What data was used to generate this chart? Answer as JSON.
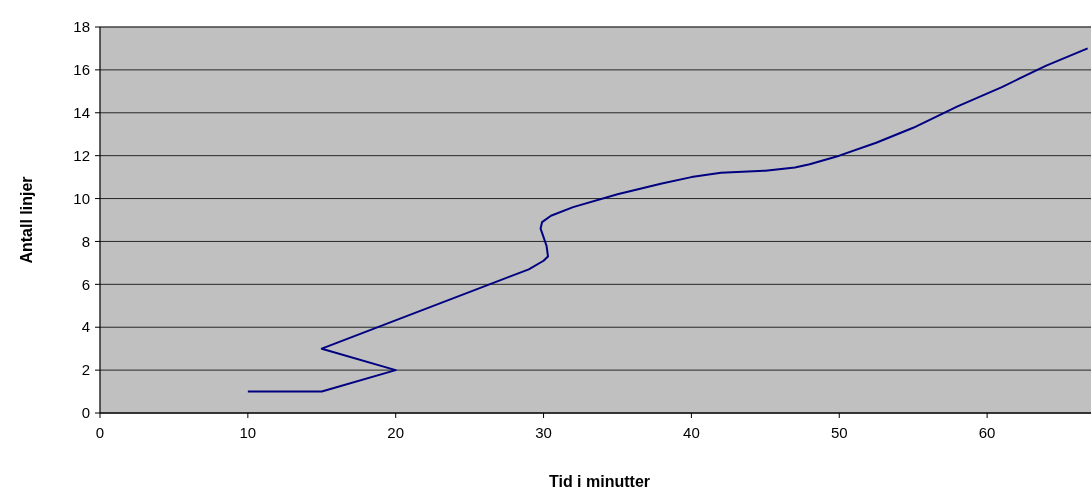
{
  "chart_data": {
    "type": "line",
    "xlabel": "Tid i minutter",
    "ylabel": "Antall linjer",
    "xlim": [
      0,
      67.5
    ],
    "xticks": [
      0,
      10,
      20,
      30,
      40,
      50,
      60
    ],
    "ylim": [
      0,
      18
    ],
    "yticks": [
      0,
      2,
      4,
      6,
      8,
      10,
      12,
      14,
      16,
      18
    ],
    "grid": "y",
    "marker": "none",
    "line_style": "solid",
    "series": [
      {
        "color": "#000080",
        "x": [
          10,
          15,
          20,
          15,
          29,
          30,
          30.3,
          30.2,
          29.8,
          29.9,
          30.5,
          32,
          35,
          38,
          40,
          42,
          45,
          47,
          48,
          50,
          52.5,
          55,
          58,
          61,
          64,
          66.8
        ],
        "values": [
          1,
          1,
          2,
          3,
          6.7,
          7.1,
          7.3,
          7.8,
          8.6,
          8.9,
          9.2,
          9.6,
          10.2,
          10.7,
          11,
          11.2,
          11.3,
          11.45,
          11.6,
          12,
          12.6,
          13.3,
          14.3,
          15.2,
          16.2,
          17
        ]
      }
    ]
  }
}
